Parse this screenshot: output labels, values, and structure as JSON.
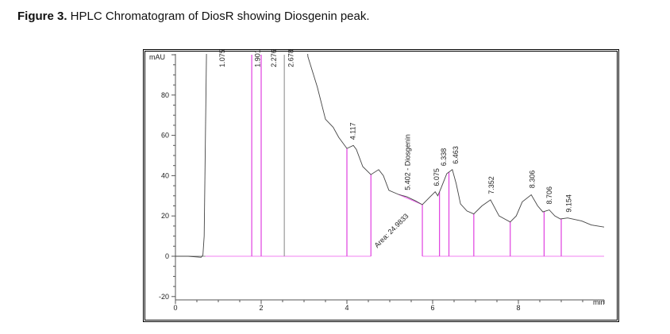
{
  "caption": {
    "label": "Figure 3.",
    "text": " HPLC Chromatogram of DiosR showing Diosgenin peak."
  },
  "chart_data": {
    "type": "line",
    "title": "HPLC Chromatogram of DiosR showing Diosgenin peak",
    "xlabel": "min",
    "ylabel": "mAU",
    "xlim": [
      0,
      10
    ],
    "ylim": [
      -20,
      100
    ],
    "xticks": [
      0,
      2,
      4,
      6,
      8
    ],
    "yticks": [
      -20,
      0,
      20,
      40,
      60,
      80
    ],
    "curve_color": "#444444",
    "marker_color": "#e040e0",
    "series": [
      {
        "name": "DiosR",
        "points": [
          [
            0,
            0
          ],
          [
            0.3,
            0
          ],
          [
            0.6,
            -0.5
          ],
          [
            0.64,
            0.5
          ],
          [
            0.67,
            10
          ],
          [
            0.7,
            60
          ],
          [
            0.73,
            110
          ],
          [
            3.05,
            110
          ],
          [
            3.09,
            99
          ],
          [
            3.31,
            84
          ],
          [
            3.5,
            68
          ],
          [
            3.68,
            64
          ],
          [
            3.81,
            59
          ],
          [
            4.0,
            53.5
          ],
          [
            4.15,
            55
          ],
          [
            4.22,
            53
          ],
          [
            4.37,
            44.5
          ],
          [
            4.56,
            40.5
          ],
          [
            4.74,
            43
          ],
          [
            4.85,
            40
          ],
          [
            4.98,
            32.7
          ],
          [
            5.2,
            30.7
          ],
          [
            5.4,
            29.5
          ],
          [
            5.6,
            27.5
          ],
          [
            5.76,
            25.6
          ],
          [
            5.94,
            29.5
          ],
          [
            6.06,
            32
          ],
          [
            6.12,
            30
          ],
          [
            6.2,
            34
          ],
          [
            6.33,
            41
          ],
          [
            6.46,
            43
          ],
          [
            6.55,
            36
          ],
          [
            6.65,
            26
          ],
          [
            6.8,
            22.5
          ],
          [
            6.96,
            21
          ],
          [
            7.15,
            25
          ],
          [
            7.35,
            28
          ],
          [
            7.55,
            20
          ],
          [
            7.81,
            17
          ],
          [
            7.95,
            20
          ],
          [
            8.09,
            27
          ],
          [
            8.3,
            30.5
          ],
          [
            8.45,
            25
          ],
          [
            8.57,
            22
          ],
          [
            8.72,
            23
          ],
          [
            8.85,
            20
          ],
          [
            8.98,
            18.5
          ],
          [
            9.15,
            19
          ],
          [
            9.48,
            17.5
          ],
          [
            9.7,
            15.5
          ],
          [
            10,
            14.5
          ]
        ]
      }
    ],
    "peak_labels": [
      {
        "label": "1.075",
        "time": 1.075,
        "y": 93
      },
      {
        "label": "1.901",
        "time": 1.901,
        "y": 93
      },
      {
        "label": "2.276",
        "time": 2.276,
        "y": 93
      },
      {
        "label": "2.678",
        "time": 2.678,
        "y": 93
      },
      {
        "label": "4.117",
        "time": 4.117,
        "y": 57
      },
      {
        "label": "5.402 - Diosgenin",
        "time": 5.402,
        "y": 32
      },
      {
        "label": "6.075",
        "time": 6.075,
        "y": 34
      },
      {
        "label": "6.338",
        "time": 6.338,
        "y": 44
      },
      {
        "label": "6.463",
        "time": 6.463,
        "y": 45
      },
      {
        "label": "7.352",
        "time": 7.352,
        "y": 30
      },
      {
        "label": "8.306",
        "time": 8.306,
        "y": 33
      },
      {
        "label": "8.706",
        "time": 8.706,
        "y": 25
      },
      {
        "label": "9.154",
        "time": 9.154,
        "y": 21
      }
    ],
    "area_annotation": {
      "label": "Area: 24.9833",
      "time": 5.5,
      "y": 29
    },
    "integration_markers": [
      1.78,
      2.0,
      2.54,
      4.0,
      4.56,
      5.76,
      6.16,
      6.38,
      6.96,
      7.81,
      8.6,
      9.0
    ],
    "integration_baseline": [
      [
        0.7,
        4.56
      ],
      [
        5.76,
        10
      ]
    ]
  }
}
